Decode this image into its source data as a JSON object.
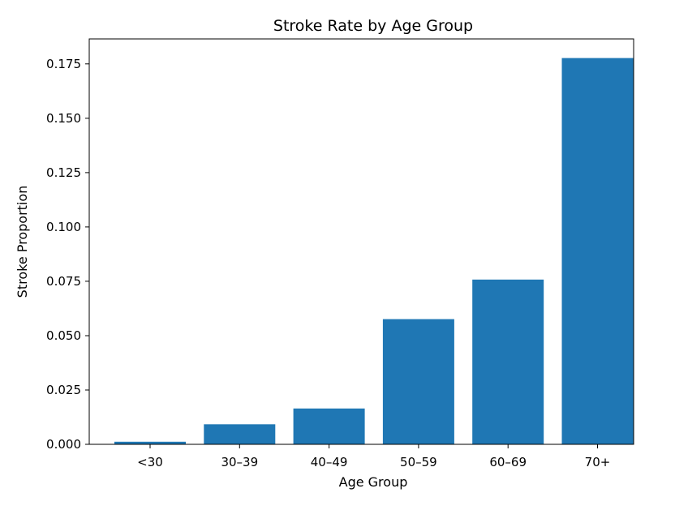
{
  "chart_data": {
    "type": "bar",
    "title": "Stroke Rate by Age Group",
    "xlabel": "Age Group",
    "ylabel": "Stroke Proportion",
    "categories": [
      "<30",
      "30–39",
      "40–49",
      "50–59",
      "60–69",
      "70+"
    ],
    "values": [
      0.0012,
      0.0092,
      0.0165,
      0.0576,
      0.0758,
      0.1777
    ],
    "ylim": [
      0,
      0.1865
    ],
    "yticks": [
      0.0,
      0.025,
      0.05,
      0.075,
      0.1,
      0.125,
      0.15,
      0.175
    ],
    "ytick_labels": [
      "0.000",
      "0.025",
      "0.050",
      "0.075",
      "0.100",
      "0.125",
      "0.150",
      "0.175"
    ],
    "grid": false,
    "bar_color": "#1f77b4"
  }
}
